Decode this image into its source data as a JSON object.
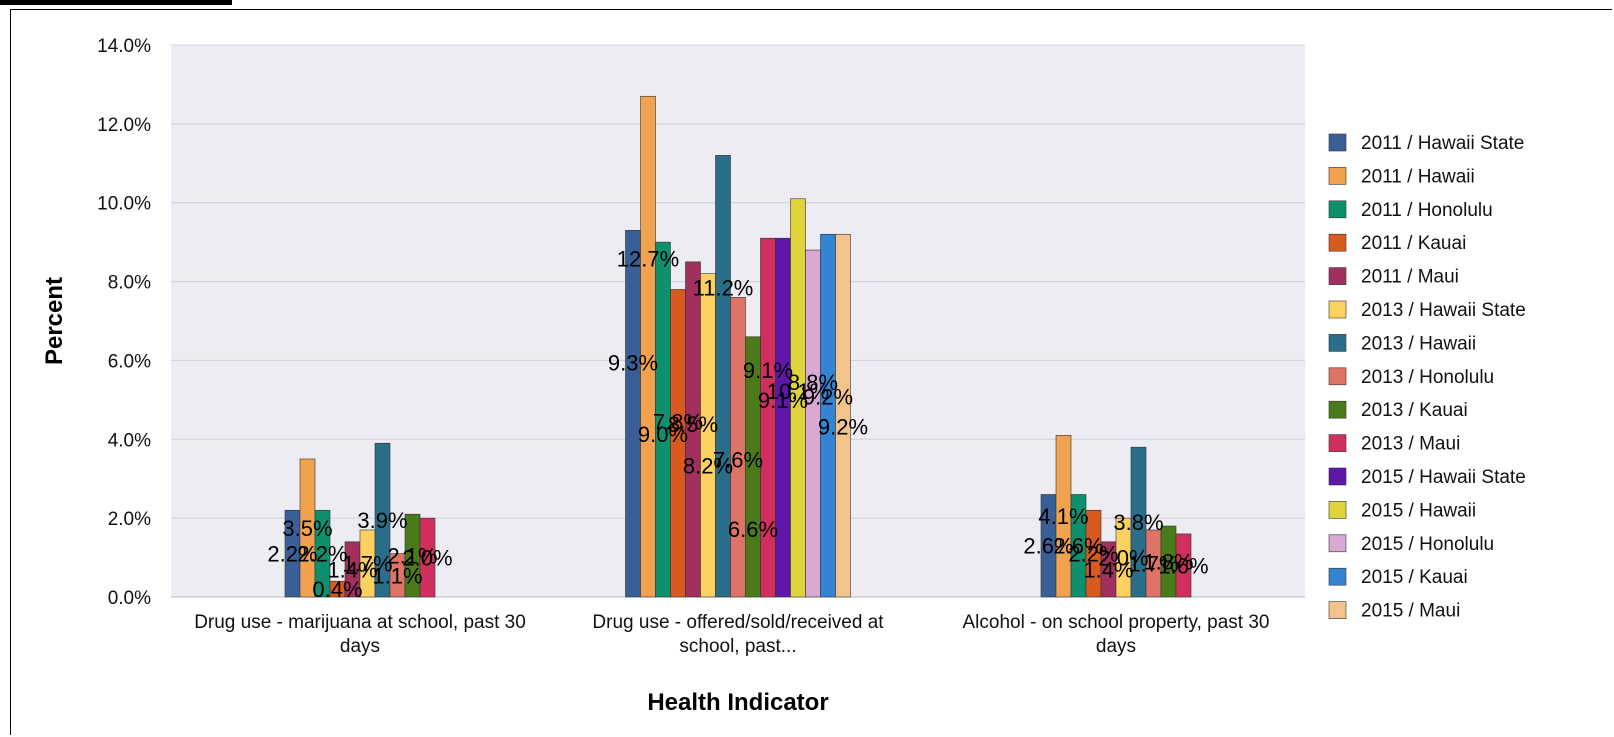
{
  "chart_data": {
    "type": "bar",
    "xlabel": "Health Indicator",
    "ylabel": "Percent",
    "ylim": [
      0,
      14
    ],
    "yticks": [
      "0.0%",
      "2.0%",
      "4.0%",
      "6.0%",
      "8.0%",
      "10.0%",
      "12.0%",
      "14.0%"
    ],
    "grid": true,
    "legend_position": "right",
    "background": "#ececf2",
    "categories": [
      "Drug use - marijuana at school, past 30 days",
      "Drug use - offered/sold/received at school, past...",
      "Alcohol - on school property, past 30 days"
    ],
    "category_lines": [
      [
        "Drug use - marijuana at school, past 30",
        "days"
      ],
      [
        "Drug use - offered/sold/received at",
        "school, past..."
      ],
      [
        "Alcohol - on school property, past 30",
        "days"
      ]
    ],
    "series": [
      {
        "name": "2011 / Hawaii State",
        "color": "#3a5f96",
        "values": [
          2.2,
          9.3,
          2.6
        ],
        "labels": [
          "2.2%",
          "9.3%",
          "2.6%"
        ]
      },
      {
        "name": "2011 / Hawaii",
        "color": "#f0a24e",
        "values": [
          3.5,
          12.7,
          4.1
        ],
        "labels": [
          "3.5%",
          "12.7%",
          "4.1%"
        ]
      },
      {
        "name": "2011 / Honolulu",
        "color": "#0e8f6e",
        "values": [
          2.2,
          9.0,
          2.6
        ],
        "labels": [
          "2.2%",
          "9.0%",
          "2.6%"
        ]
      },
      {
        "name": "2011 / Kauai",
        "color": "#d85a1e",
        "values": [
          0.4,
          7.8,
          2.2
        ],
        "labels": [
          "0.4%",
          "7.8%",
          "2.2%"
        ]
      },
      {
        "name": "2011 / Maui",
        "color": "#a2305e",
        "values": [
          1.4,
          8.5,
          1.4
        ],
        "labels": [
          "1.4%",
          "8.5%",
          "1.4%"
        ]
      },
      {
        "name": "2013 / Hawaii State",
        "color": "#fdd160",
        "values": [
          1.7,
          8.2,
          2.0
        ],
        "labels": [
          "1.7%",
          "8.2%",
          "2.0%"
        ]
      },
      {
        "name": "2013 / Hawaii",
        "color": "#2a6e89",
        "values": [
          3.9,
          11.2,
          3.8
        ],
        "labels": [
          "3.9%",
          "11.2%",
          "3.8%"
        ]
      },
      {
        "name": "2013 / Honolulu",
        "color": "#dd7465",
        "values": [
          1.1,
          7.6,
          1.7
        ],
        "labels": [
          "1.1%",
          "7.6%",
          "1.7%"
        ]
      },
      {
        "name": "2013 / Kauai",
        "color": "#4b7a1b",
        "values": [
          2.1,
          6.6,
          1.8
        ],
        "labels": [
          "2.1%",
          "6.6%",
          "1.8%"
        ]
      },
      {
        "name": "2013 / Maui",
        "color": "#d12f5d",
        "values": [
          2.0,
          9.1,
          1.6
        ],
        "labels": [
          "2.0%",
          "9.1%",
          "1.6%"
        ]
      },
      {
        "name": "2015 / Hawaii State",
        "color": "#5e17a8",
        "values": [
          null,
          9.1,
          null
        ],
        "labels": [
          "",
          "9.1%",
          ""
        ]
      },
      {
        "name": "2015 / Hawaii",
        "color": "#e0d43c",
        "values": [
          null,
          10.1,
          null
        ],
        "labels": [
          "",
          "10.1%",
          ""
        ]
      },
      {
        "name": "2015 / Honolulu",
        "color": "#d7a9d3",
        "values": [
          null,
          8.8,
          null
        ],
        "labels": [
          "",
          "8.8%",
          ""
        ]
      },
      {
        "name": "2015 / Kauai",
        "color": "#3384d3",
        "values": [
          null,
          9.2,
          null
        ],
        "labels": [
          "",
          "9.2%",
          ""
        ]
      },
      {
        "name": "2015 / Maui",
        "color": "#f2c48c",
        "values": [
          null,
          9.2,
          null
        ],
        "labels": [
          "",
          "9.2%",
          ""
        ]
      }
    ]
  }
}
